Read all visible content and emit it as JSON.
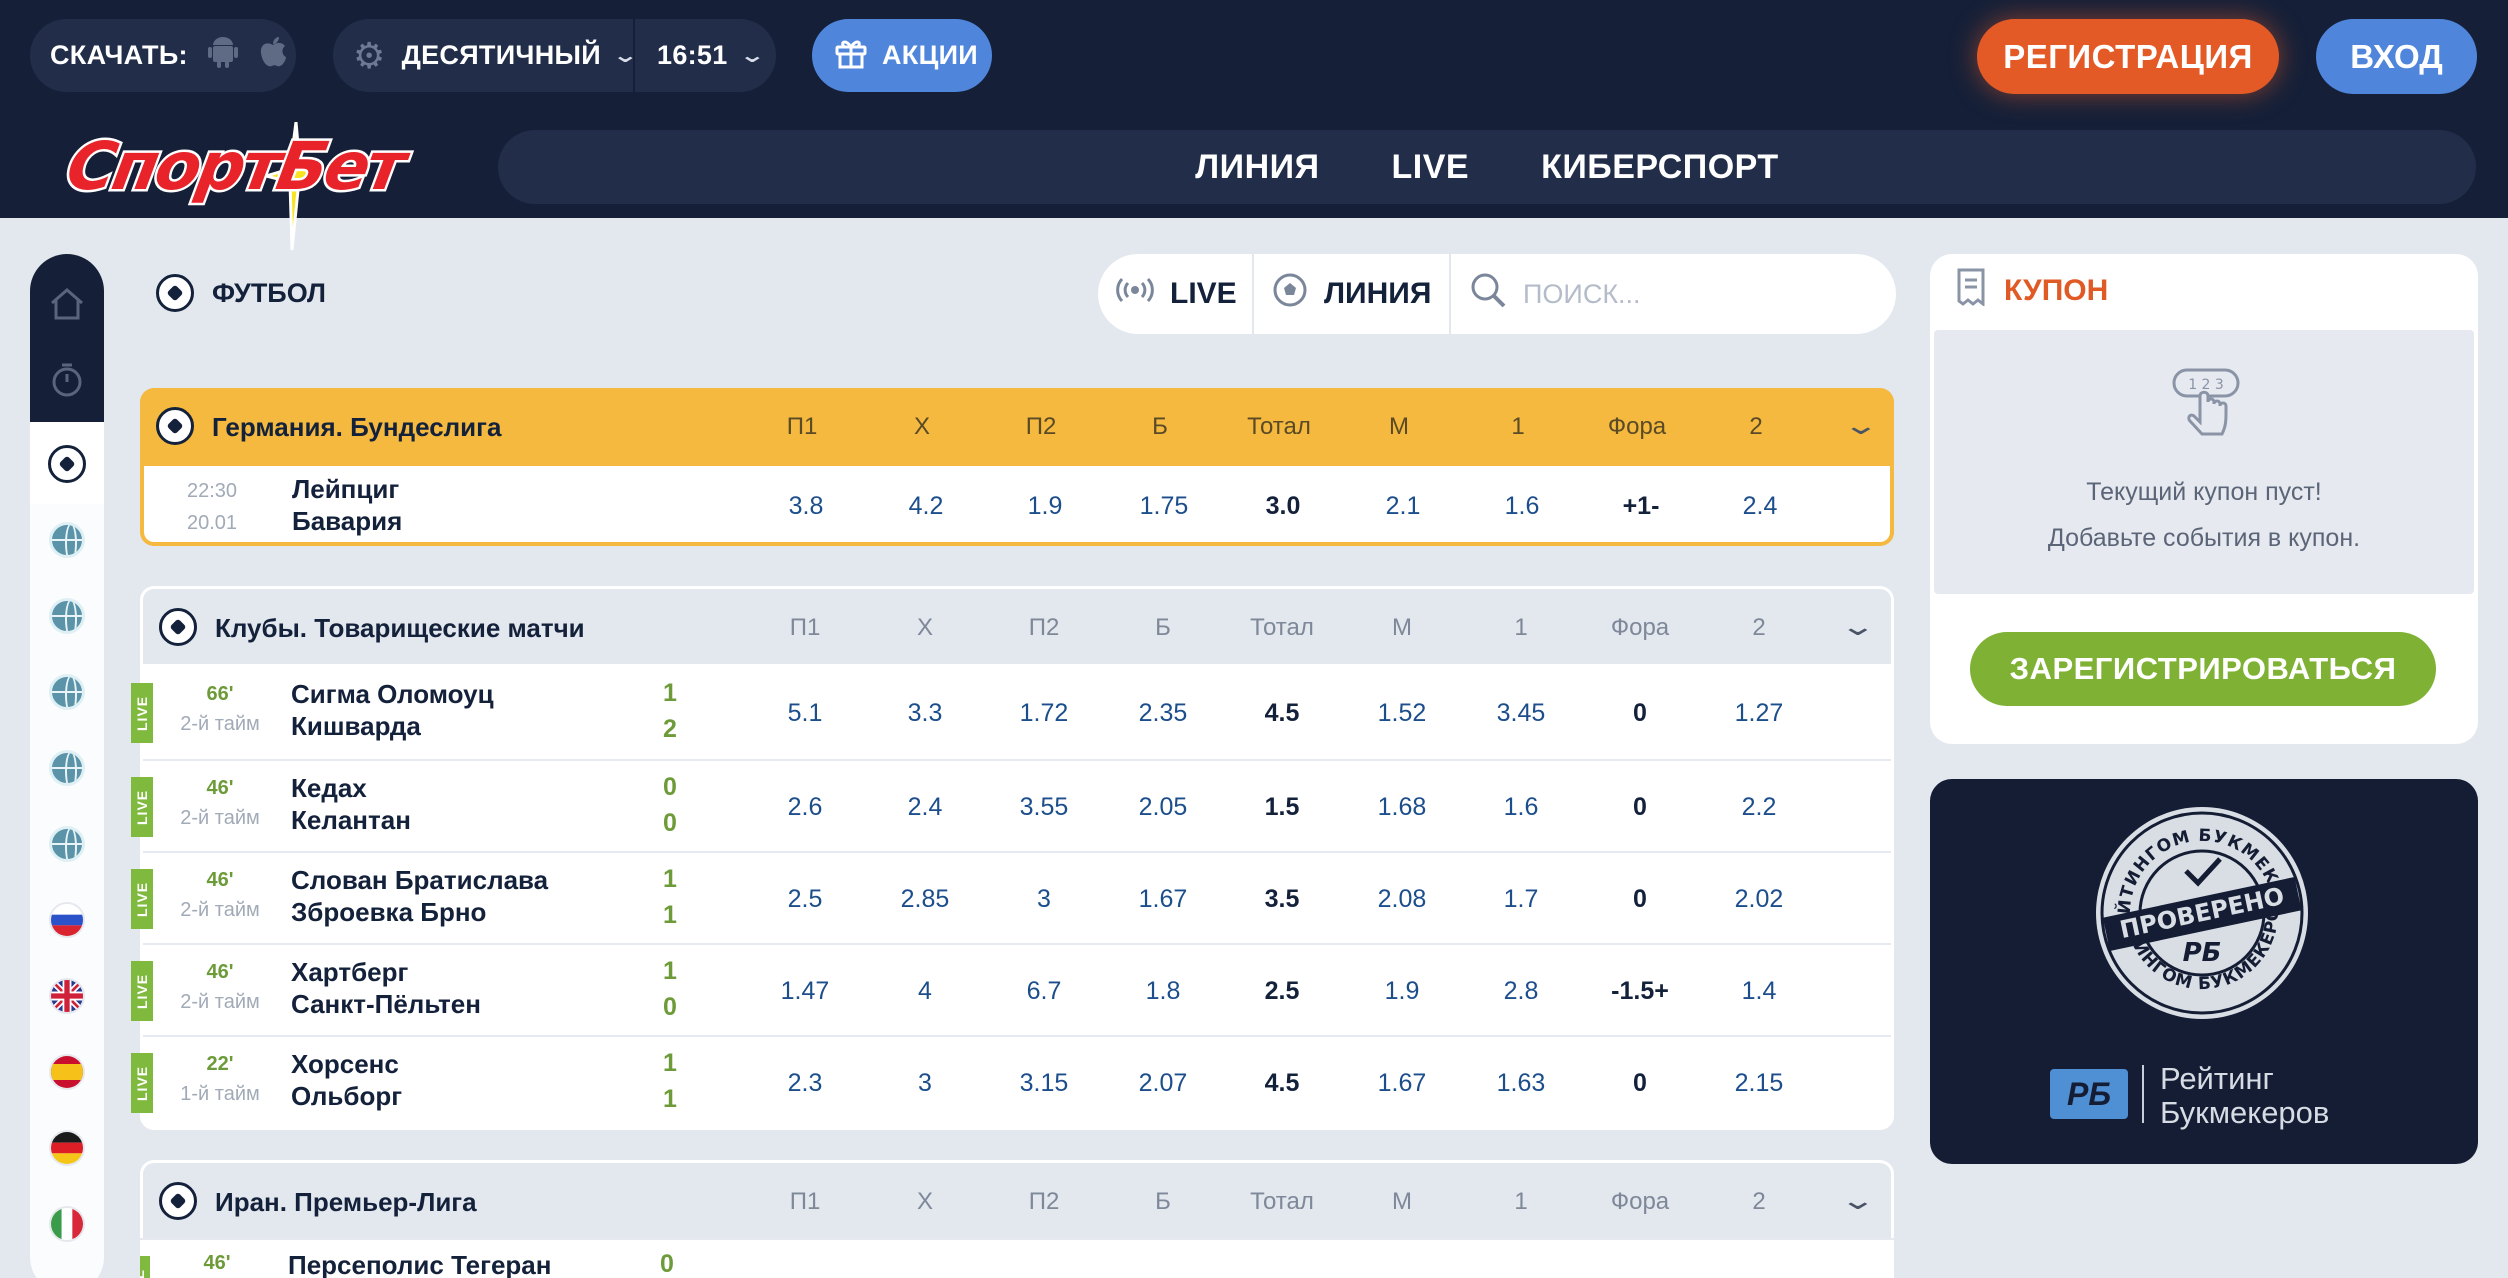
{
  "header": {
    "download_label": "СКАЧАТЬ:",
    "odds_format": "ДЕСЯТИЧНЫЙ",
    "time": "16:51",
    "promo_label": "АКЦИИ",
    "register_label": "РЕГИСТРАЦИЯ",
    "login_label": "ВХОД",
    "logo_text": "СпортБет",
    "nav": [
      "ЛИНИЯ",
      "LIVE",
      "КИБЕРСПОРТ"
    ]
  },
  "content": {
    "sport_title": "ФУТБОЛ",
    "filter_live": "LIVE",
    "filter_line": "ЛИНИЯ",
    "search_placeholder": "ПОИСК..."
  },
  "columns": [
    "П1",
    "Х",
    "П2",
    "Б",
    "Тотал",
    "М",
    "1",
    "Фора",
    "2"
  ],
  "leagues": [
    {
      "name": "Германия. Бундеслига",
      "matches": [
        {
          "time": "22:30",
          "date": "20.01",
          "team1": "Лейпциг",
          "team2": "Бавария",
          "odds": [
            "3.8",
            "4.2",
            "1.9",
            "1.75",
            "3.0",
            "2.1",
            "1.6",
            "+1-",
            "2.4"
          ]
        }
      ]
    },
    {
      "name": "Клубы. Товарищеские матчи",
      "matches": [
        {
          "minute": "66'",
          "period": "2-й тайм",
          "team1": "Сигма Оломоуц",
          "team2": "Кишварда",
          "score1": "1",
          "score2": "2",
          "live": "LIVE",
          "odds": [
            "5.1",
            "3.3",
            "1.72",
            "2.35",
            "4.5",
            "1.52",
            "3.45",
            "0",
            "1.27"
          ]
        },
        {
          "minute": "46'",
          "period": "2-й тайм",
          "team1": "Кедах",
          "team2": "Келантан",
          "score1": "0",
          "score2": "0",
          "live": "LIVE",
          "odds": [
            "2.6",
            "2.4",
            "3.55",
            "2.05",
            "1.5",
            "1.68",
            "1.6",
            "0",
            "2.2"
          ]
        },
        {
          "minute": "46'",
          "period": "2-й тайм",
          "team1": "Слован Братислава",
          "team2": "Зброевка Брно",
          "score1": "1",
          "score2": "1",
          "live": "LIVE",
          "odds": [
            "2.5",
            "2.85",
            "3",
            "1.67",
            "3.5",
            "2.08",
            "1.7",
            "0",
            "2.02"
          ]
        },
        {
          "minute": "46'",
          "period": "2-й тайм",
          "team1": "Хартберг",
          "team2": "Санкт-Пёльтен",
          "score1": "1",
          "score2": "0",
          "live": "LIVE",
          "odds": [
            "1.47",
            "4",
            "6.7",
            "1.8",
            "2.5",
            "1.9",
            "2.8",
            "-1.5+",
            "1.4"
          ]
        },
        {
          "minute": "22'",
          "period": "1-й тайм",
          "team1": "Хорсенс",
          "team2": "Ольборг",
          "score1": "1",
          "score2": "1",
          "live": "LIVE",
          "odds": [
            "2.3",
            "3",
            "3.15",
            "2.07",
            "4.5",
            "1.67",
            "1.63",
            "0",
            "2.15"
          ]
        }
      ]
    },
    {
      "name": "Иран. Премьер-Лига",
      "matches": [
        {
          "minute": "46'",
          "team1": "Персеполис Тегеран",
          "score1": "0",
          "live": "LIVE"
        }
      ]
    }
  ],
  "coupon": {
    "title": "КУПОН",
    "empty_line1": "Текущий купон пуст!",
    "empty_line2": "Добавьте события в купон.",
    "signup_label": "ЗАРЕГИСТРИРОВАТЬСЯ"
  },
  "badge": {
    "seal_top": "РЕЙТИНГОМ БУКМЕКЕРОВ",
    "seal_mid": "ПРОВЕРЕНО",
    "seal_bottom": "РЕЙТИНГОМ БУКМЕКЕРОВ",
    "logo": "РБ",
    "line1": "Рейтинг",
    "line2": "Букмекеров"
  },
  "colors": {
    "header_bg": "#152038",
    "accent_orange": "#e45a26",
    "accent_blue": "#4f86dc",
    "league_highlight": "#f4b93e",
    "live_green": "#7fba3e",
    "odds_blue": "#1c4e8c"
  },
  "icons": {
    "rail": [
      "home-icon",
      "stopwatch-icon",
      "football-icon",
      "globe-icon",
      "globe-icon",
      "globe-icon",
      "globe-icon",
      "globe-icon",
      "russia-flag-icon",
      "uk-flag-icon",
      "spain-flag-icon",
      "germany-flag-icon",
      "italy-flag-icon"
    ]
  }
}
